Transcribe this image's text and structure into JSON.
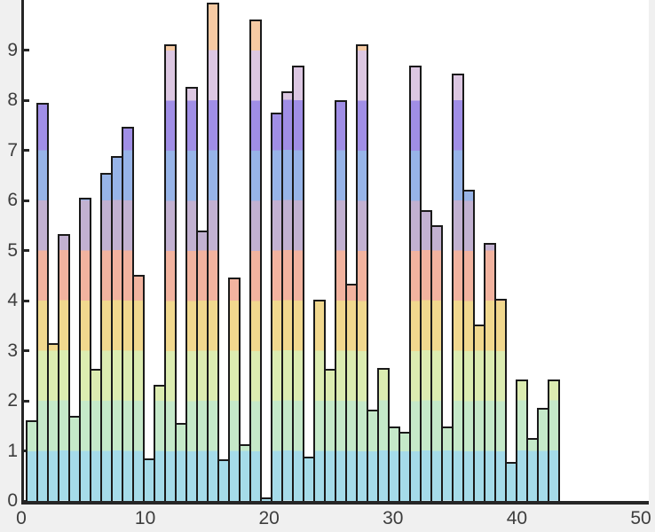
{
  "chart_data": {
    "type": "bar",
    "title": "",
    "xlabel": "",
    "ylabel": "",
    "x": [
      1,
      2,
      3,
      4,
      5,
      6,
      7,
      8,
      9,
      10,
      11,
      12,
      13,
      14,
      15,
      16,
      17,
      18,
      19,
      20,
      21,
      22,
      23,
      24,
      25,
      26,
      27,
      28,
      29,
      30,
      31,
      32,
      33,
      34,
      35,
      36,
      37,
      38,
      39,
      40,
      41,
      42,
      43,
      44,
      45,
      46,
      47,
      48,
      49,
      50
    ],
    "values": [
      1.62,
      7.95,
      3.15,
      5.32,
      1.7,
      6.05,
      2.64,
      6.55,
      6.88,
      7.47,
      4.51,
      0.85,
      2.32,
      9.12,
      1.56,
      8.27,
      5.4,
      9.95,
      0.83,
      4.46,
      1.13,
      9.62,
      0.08,
      7.75,
      8.17,
      8.69,
      0.88,
      4.02,
      2.64,
      8.0,
      4.34,
      9.12,
      1.83,
      2.65,
      1.49,
      1.39,
      8.7,
      5.8,
      5.5,
      1.48,
      8.53,
      6.22,
      3.52,
      5.15,
      4.04,
      0.78,
      2.42,
      1.26,
      1.86,
      2.42
    ],
    "xlim": [
      0,
      50
    ],
    "ylim": [
      0,
      10
    ],
    "xticks": [
      0,
      10,
      20,
      30,
      40,
      50
    ],
    "xticklabels": [
      "0",
      "10",
      "20",
      "30",
      "40",
      "50"
    ],
    "yticks": [
      0,
      1,
      2,
      3,
      4,
      5,
      6,
      7,
      8,
      9
    ],
    "yticklabels": [
      "0",
      "1",
      "2",
      "3",
      "4",
      "5",
      "6",
      "7",
      "8",
      "9"
    ],
    "grid": false,
    "legend": null,
    "color_mode": "height-banded-colormap",
    "band_colors": [
      "#a5dbe9",
      "#c5e9c9",
      "#dcecb1",
      "#f1d88e",
      "#f2b39f",
      "#c2b1d1",
      "#97b4e8",
      "#a08ee6",
      "#dcc7e2",
      "#f6caa3"
    ],
    "bar_edge_color": "#1a1a1a",
    "axis_color": "#262626",
    "tick_label_color": "#3d3d3d",
    "plot_bg": "#ffffff",
    "figure_bg": "#f0f0f0"
  }
}
